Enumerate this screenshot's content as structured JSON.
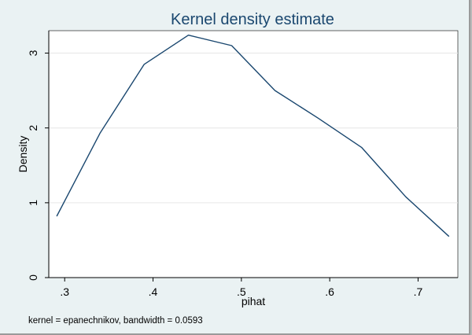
{
  "window": {
    "background": "#eaf2f3",
    "frame_color": "#b9b9b9"
  },
  "chart_data": {
    "type": "line",
    "title": "Kernel density estimate",
    "xlabel": "pihat",
    "ylabel": "Density",
    "note": "kernel = epanechnikov, bandwidth = 0.0593",
    "xlim": [
      0.282,
      0.745
    ],
    "ylim": [
      0,
      3.3
    ],
    "xticks": [
      0.3,
      0.4,
      0.5,
      0.6,
      0.7
    ],
    "xtick_labels": [
      ".3",
      ".4",
      ".5",
      ".6",
      ".7"
    ],
    "yticks": [
      0,
      1,
      2,
      3
    ],
    "ytick_labels": [
      "0",
      "1",
      "2",
      "3"
    ],
    "grid": true,
    "line_color": "#1a476f",
    "series": [
      {
        "x": [
          0.291,
          0.34,
          0.39,
          0.44,
          0.489,
          0.538,
          0.587,
          0.636,
          0.686,
          0.735
        ],
        "y": [
          0.82,
          1.93,
          2.85,
          3.24,
          3.1,
          2.5,
          2.13,
          1.74,
          1.08,
          0.55
        ]
      }
    ]
  }
}
